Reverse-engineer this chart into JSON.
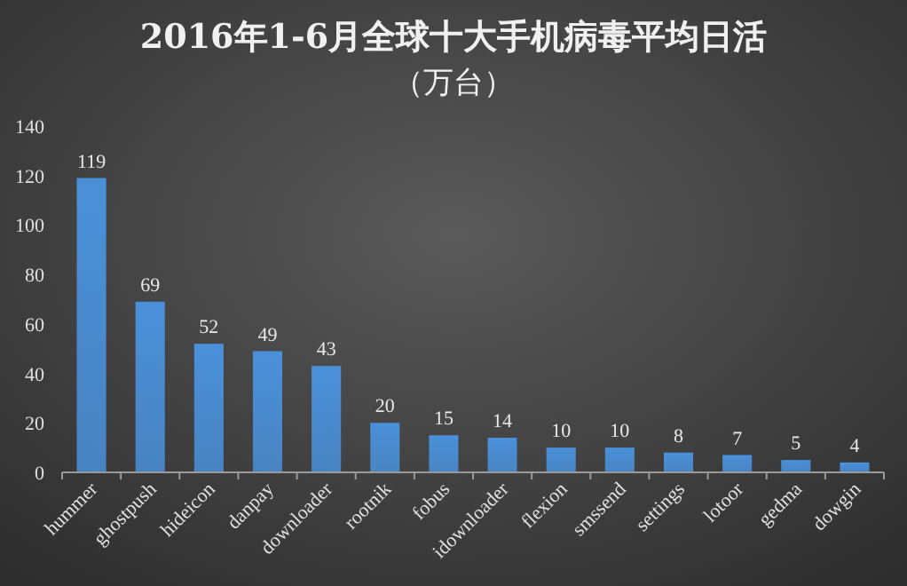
{
  "chart_data": {
    "type": "bar",
    "title": "2016年1-6月全球十大手机病毒平均日活",
    "subtitle": "（万台）",
    "categories": [
      "hummer",
      "ghostpush",
      "hideicon",
      "danpay",
      "downloader",
      "rootnik",
      "fobus",
      "idownloader",
      "flexion",
      "smssend",
      "settings",
      "lotoor",
      "gedma",
      "dowgin"
    ],
    "values": [
      119,
      69,
      52,
      49,
      43,
      20,
      15,
      14,
      10,
      10,
      8,
      7,
      5,
      4
    ],
    "color": "#4a90d9",
    "ylim": [
      0,
      140
    ],
    "yticks": [
      0,
      20,
      40,
      60,
      80,
      100,
      120,
      140
    ],
    "grid": false,
    "data_labels": true
  }
}
